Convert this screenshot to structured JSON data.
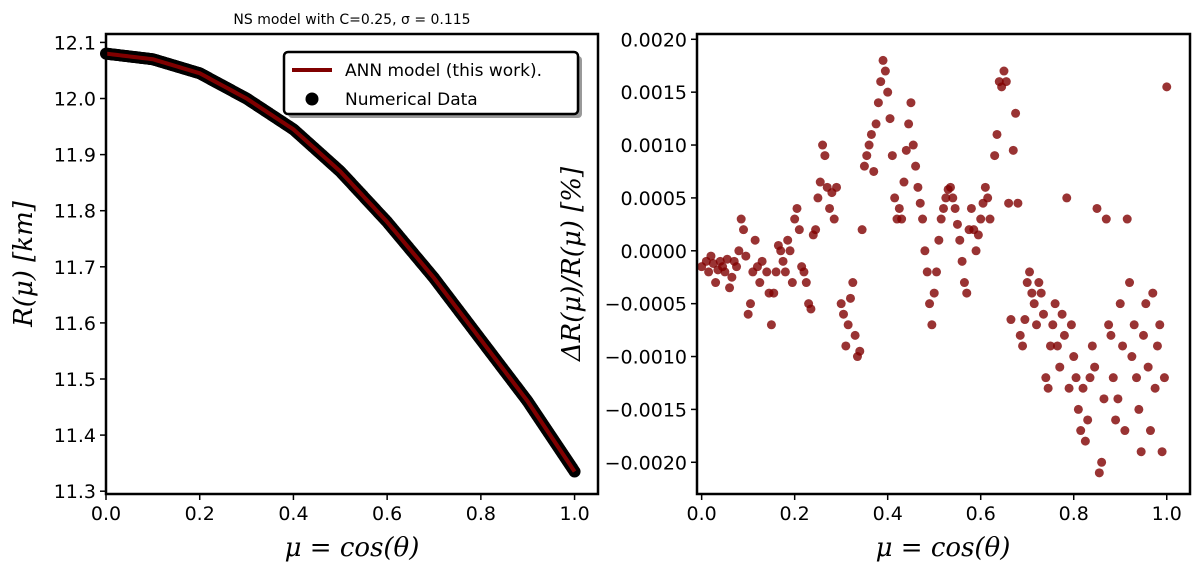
{
  "chart_data": [
    {
      "type": "line",
      "title": "NS model with C=0.25, σ = 0.115",
      "xlabel": "μ = cos(θ)",
      "ylabel": "R(μ) [km]",
      "xlim": [
        0.0,
        1.05
      ],
      "ylim": [
        11.295,
        12.115
      ],
      "xticks": [
        "0.0",
        "0.2",
        "0.4",
        "0.6",
        "0.8",
        "1.0"
      ],
      "yticks": [
        "11.3",
        "11.4",
        "11.5",
        "11.6",
        "11.7",
        "11.8",
        "11.9",
        "12.0",
        "12.1"
      ],
      "legend_position": "top-right",
      "series": [
        {
          "name": "ANN model (this work).",
          "kind": "line",
          "color": "#800000",
          "x": [
            0.0,
            0.1,
            0.2,
            0.3,
            0.4,
            0.5,
            0.6,
            0.7,
            0.8,
            0.9,
            1.0
          ],
          "y": [
            12.08,
            12.07,
            12.045,
            12.0,
            11.945,
            11.87,
            11.78,
            11.68,
            11.57,
            11.46,
            11.335
          ]
        },
        {
          "name": "Numerical Data",
          "kind": "scatter",
          "color": "#000000",
          "x": [
            0.0,
            0.1,
            0.2,
            0.3,
            0.4,
            0.5,
            0.6,
            0.7,
            0.8,
            0.9,
            1.0
          ],
          "y": [
            12.08,
            12.07,
            12.045,
            12.0,
            11.945,
            11.87,
            11.78,
            11.68,
            11.57,
            11.46,
            11.335
          ]
        }
      ]
    },
    {
      "type": "scatter",
      "xlabel": "μ = cos(θ)",
      "ylabel": "ΔR(μ)/R(μ) [%]",
      "xlim": [
        -0.01,
        1.05
      ],
      "ylim": [
        -0.0023,
        0.00205
      ],
      "xticks": [
        "0.0",
        "0.2",
        "0.4",
        "0.6",
        "0.8",
        "1.0"
      ],
      "yticks": [
        "−0.0020",
        "−0.0015",
        "−0.0010",
        "−0.0005",
        "0.0000",
        "0.0005",
        "0.0010",
        "0.0015",
        "0.0020"
      ],
      "color": "#800000",
      "points": [
        [
          0.0,
          -0.00015
        ],
        [
          0.01,
          -0.0001
        ],
        [
          0.015,
          -0.0002
        ],
        [
          0.02,
          -5e-05
        ],
        [
          0.025,
          -0.00012
        ],
        [
          0.03,
          -0.0003
        ],
        [
          0.035,
          -0.00018
        ],
        [
          0.04,
          -0.0001
        ],
        [
          0.045,
          -0.00015
        ],
        [
          0.05,
          -0.0002
        ],
        [
          0.055,
          -8e-05
        ],
        [
          0.06,
          -0.00035
        ],
        [
          0.065,
          -0.00025
        ],
        [
          0.07,
          -0.0001
        ],
        [
          0.075,
          -0.00015
        ],
        [
          0.08,
          0.0
        ],
        [
          0.085,
          0.0003
        ],
        [
          0.09,
          0.0002
        ],
        [
          0.095,
          -5e-05
        ],
        [
          0.1,
          -0.0006
        ],
        [
          0.105,
          -0.0005
        ],
        [
          0.11,
          -0.0002
        ],
        [
          0.115,
          0.0001
        ],
        [
          0.12,
          -0.00015
        ],
        [
          0.125,
          -0.0003
        ],
        [
          0.13,
          -0.0001
        ],
        [
          0.14,
          -0.0002
        ],
        [
          0.145,
          -0.0004
        ],
        [
          0.15,
          -0.0007
        ],
        [
          0.155,
          -0.0004
        ],
        [
          0.16,
          -0.0002
        ],
        [
          0.165,
          5e-05
        ],
        [
          0.17,
          0.0
        ],
        [
          0.175,
          -0.0001
        ],
        [
          0.18,
          -0.0002
        ],
        [
          0.185,
          0.0001
        ],
        [
          0.19,
          0.0
        ],
        [
          0.195,
          -0.0003
        ],
        [
          0.2,
          0.0003
        ],
        [
          0.205,
          0.0004
        ],
        [
          0.21,
          0.0002
        ],
        [
          0.215,
          -0.00015
        ],
        [
          0.22,
          -0.0002
        ],
        [
          0.225,
          -0.0003
        ],
        [
          0.23,
          -0.0005
        ],
        [
          0.235,
          -0.00055
        ],
        [
          0.24,
          0.00015
        ],
        [
          0.245,
          0.0002
        ],
        [
          0.25,
          0.0005
        ],
        [
          0.255,
          0.00065
        ],
        [
          0.26,
          0.001
        ],
        [
          0.265,
          0.0009
        ],
        [
          0.27,
          0.0006
        ],
        [
          0.275,
          0.0004
        ],
        [
          0.28,
          0.00055
        ],
        [
          0.285,
          0.0003
        ],
        [
          0.29,
          0.0006
        ],
        [
          0.3,
          -0.0005
        ],
        [
          0.305,
          -0.0006
        ],
        [
          0.31,
          -0.0009
        ],
        [
          0.315,
          -0.0007
        ],
        [
          0.32,
          -0.00045
        ],
        [
          0.325,
          -0.0003
        ],
        [
          0.33,
          -0.0008
        ],
        [
          0.335,
          -0.001
        ],
        [
          0.34,
          -0.00095
        ],
        [
          0.345,
          0.0002
        ],
        [
          0.35,
          0.0008
        ],
        [
          0.355,
          0.0009
        ],
        [
          0.36,
          0.001
        ],
        [
          0.365,
          0.0011
        ],
        [
          0.37,
          0.00075
        ],
        [
          0.375,
          0.0012
        ],
        [
          0.38,
          0.0014
        ],
        [
          0.385,
          0.0016
        ],
        [
          0.39,
          0.0018
        ],
        [
          0.395,
          0.0017
        ],
        [
          0.4,
          0.0015
        ],
        [
          0.405,
          0.00125
        ],
        [
          0.41,
          0.0009
        ],
        [
          0.415,
          0.0005
        ],
        [
          0.42,
          0.0003
        ],
        [
          0.425,
          0.0004
        ],
        [
          0.43,
          0.0003
        ],
        [
          0.435,
          0.00065
        ],
        [
          0.44,
          0.00095
        ],
        [
          0.445,
          0.0012
        ],
        [
          0.45,
          0.0014
        ],
        [
          0.455,
          0.001
        ],
        [
          0.46,
          0.0008
        ],
        [
          0.465,
          0.0006
        ],
        [
          0.47,
          0.00045
        ],
        [
          0.475,
          0.0003
        ],
        [
          0.48,
          0.0
        ],
        [
          0.485,
          -0.0002
        ],
        [
          0.49,
          -0.0005
        ],
        [
          0.495,
          -0.0007
        ],
        [
          0.5,
          -0.0004
        ],
        [
          0.505,
          -0.0002
        ],
        [
          0.51,
          0.0001
        ],
        [
          0.515,
          0.0003
        ],
        [
          0.52,
          0.0004
        ],
        [
          0.525,
          0.0005
        ],
        [
          0.53,
          0.00058
        ],
        [
          0.535,
          0.0006
        ],
        [
          0.54,
          0.0005
        ],
        [
          0.545,
          0.0004
        ],
        [
          0.55,
          0.00025
        ],
        [
          0.555,
          0.0001
        ],
        [
          0.56,
          -0.0001
        ],
        [
          0.565,
          -0.0003
        ],
        [
          0.57,
          -0.0004
        ],
        [
          0.575,
          0.0002
        ],
        [
          0.58,
          0.0004
        ],
        [
          0.585,
          0.0002
        ],
        [
          0.59,
          0.0
        ],
        [
          0.595,
          0.00015
        ],
        [
          0.6,
          0.0003
        ],
        [
          0.605,
          0.00045
        ],
        [
          0.61,
          0.0006
        ],
        [
          0.615,
          0.0005
        ],
        [
          0.62,
          0.0003
        ],
        [
          0.63,
          0.0009
        ],
        [
          0.635,
          0.0011
        ],
        [
          0.64,
          0.0016
        ],
        [
          0.645,
          0.00155
        ],
        [
          0.65,
          0.0017
        ],
        [
          0.655,
          0.0016
        ],
        [
          0.66,
          0.00045
        ],
        [
          0.665,
          -0.00065
        ],
        [
          0.67,
          0.00095
        ],
        [
          0.675,
          0.0013
        ],
        [
          0.68,
          0.00045
        ],
        [
          0.685,
          -0.0008
        ],
        [
          0.69,
          -0.0009
        ],
        [
          0.695,
          -0.00065
        ],
        [
          0.7,
          -0.0003
        ],
        [
          0.705,
          -0.0002
        ],
        [
          0.71,
          -0.0004
        ],
        [
          0.715,
          -0.0005
        ],
        [
          0.72,
          -0.0007
        ],
        [
          0.725,
          -0.0003
        ],
        [
          0.73,
          -0.0004
        ],
        [
          0.735,
          -0.0006
        ],
        [
          0.74,
          -0.0012
        ],
        [
          0.745,
          -0.0013
        ],
        [
          0.75,
          -0.0009
        ],
        [
          0.755,
          -0.0007
        ],
        [
          0.76,
          -0.0005
        ],
        [
          0.765,
          -0.0009
        ],
        [
          0.77,
          -0.0011
        ],
        [
          0.775,
          -0.0006
        ],
        [
          0.78,
          -0.0008
        ],
        [
          0.785,
          0.0005
        ],
        [
          0.79,
          -0.0013
        ],
        [
          0.795,
          -0.0007
        ],
        [
          0.8,
          -0.001
        ],
        [
          0.805,
          -0.0012
        ],
        [
          0.81,
          -0.0015
        ],
        [
          0.815,
          -0.0017
        ],
        [
          0.82,
          -0.0013
        ],
        [
          0.825,
          -0.0018
        ],
        [
          0.83,
          -0.0016
        ],
        [
          0.835,
          -0.0012
        ],
        [
          0.84,
          -0.0009
        ],
        [
          0.845,
          -0.0011
        ],
        [
          0.85,
          0.0004
        ],
        [
          0.855,
          -0.0021
        ],
        [
          0.86,
          -0.002
        ],
        [
          0.865,
          -0.0014
        ],
        [
          0.87,
          0.0003
        ],
        [
          0.875,
          -0.0007
        ],
        [
          0.88,
          -0.0008
        ],
        [
          0.885,
          -0.0012
        ],
        [
          0.89,
          -0.0016
        ],
        [
          0.895,
          -0.0014
        ],
        [
          0.9,
          -0.0005
        ],
        [
          0.905,
          -0.0009
        ],
        [
          0.91,
          -0.0017
        ],
        [
          0.915,
          0.0003
        ],
        [
          0.92,
          -0.0003
        ],
        [
          0.925,
          -0.001
        ],
        [
          0.93,
          -0.0007
        ],
        [
          0.935,
          -0.0012
        ],
        [
          0.94,
          -0.0015
        ],
        [
          0.945,
          -0.0019
        ],
        [
          0.95,
          -0.0008
        ],
        [
          0.955,
          -0.0005
        ],
        [
          0.96,
          -0.0011
        ],
        [
          0.965,
          -0.0017
        ],
        [
          0.97,
          -0.0004
        ],
        [
          0.975,
          -0.0013
        ],
        [
          0.98,
          -0.0009
        ],
        [
          0.985,
          -0.0007
        ],
        [
          0.99,
          -0.0019
        ],
        [
          0.995,
          -0.0012
        ],
        [
          1.0,
          0.00155
        ]
      ]
    }
  ]
}
